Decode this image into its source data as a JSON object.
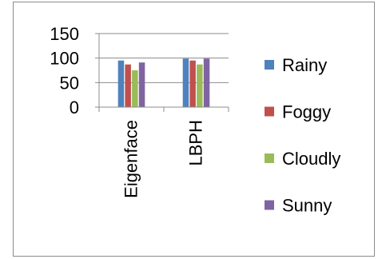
{
  "chart_data": {
    "type": "bar",
    "categories": [
      "Eigenface",
      "LBPH"
    ],
    "series": [
      {
        "name": "Rainy",
        "values": [
          95,
          99
        ],
        "color": "#4f81bd"
      },
      {
        "name": "Foggy",
        "values": [
          87,
          95
        ],
        "color": "#c0504d"
      },
      {
        "name": "Cloudly",
        "values": [
          75,
          87
        ],
        "color": "#9bbb59"
      },
      {
        "name": "Sunny",
        "values": [
          91,
          99
        ],
        "color": "#8064a2"
      }
    ],
    "yticks": [
      "0",
      "50",
      "100",
      "150"
    ],
    "ylim": [
      0,
      150
    ],
    "grid": true,
    "legend": "right",
    "gridline_color": "#8c8c8c",
    "axis_color": "#8c8c8c"
  }
}
